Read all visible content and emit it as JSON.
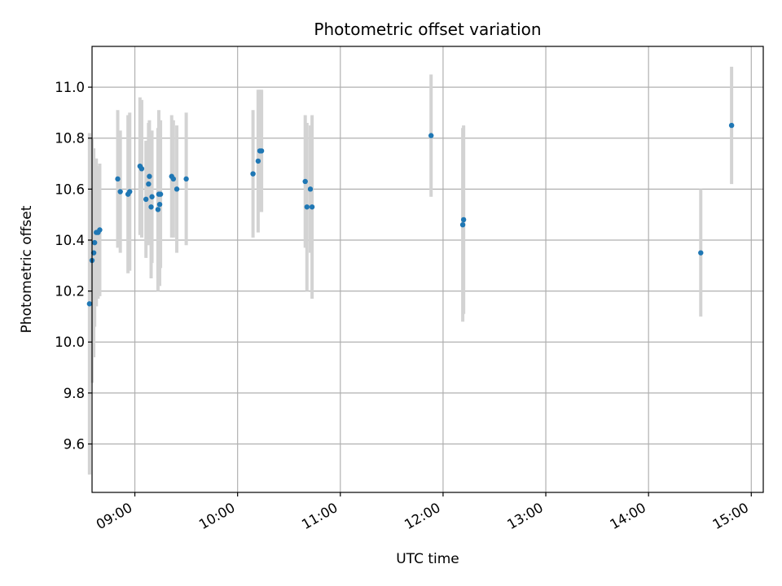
{
  "chart_data": {
    "type": "scatter",
    "title": "Photometric offset variation",
    "xlabel": "UTC time",
    "ylabel": "Photometric offset",
    "xlim": [
      "08:35",
      "15:07"
    ],
    "ylim": [
      9.41,
      11.16
    ],
    "x_ticks": [
      "09:00",
      "10:00",
      "11:00",
      "12:00",
      "13:00",
      "14:00",
      "15:00"
    ],
    "y_ticks": [
      9.6,
      9.8,
      10.0,
      10.2,
      10.4,
      10.6,
      10.8,
      11.0
    ],
    "y_tick_labels": [
      "9.6",
      "9.8",
      "10.0",
      "10.2",
      "10.4",
      "10.6",
      "10.8",
      "11.0"
    ],
    "grid": true,
    "colors": {
      "point": "#1f77b4",
      "errorbar": "#d3d3d3",
      "grid": "#b0b0b0"
    },
    "points": [
      {
        "x": "08:33:30",
        "y": 10.15,
        "yerr": 0.67
      },
      {
        "x": "08:35:00",
        "y": 10.32,
        "yerr": 0.48
      },
      {
        "x": "08:36:00",
        "y": 10.35,
        "yerr": 0.41
      },
      {
        "x": "08:36:30",
        "y": 10.39,
        "yerr": 0.33
      },
      {
        "x": "08:37:30",
        "y": 10.43,
        "yerr": 0.29
      },
      {
        "x": "08:38:30",
        "y": 10.43,
        "yerr": 0.26
      },
      {
        "x": "08:39:30",
        "y": 10.44,
        "yerr": 0.26
      },
      {
        "x": "08:50:00",
        "y": 10.64,
        "yerr": 0.27
      },
      {
        "x": "08:51:30",
        "y": 10.59,
        "yerr": 0.24
      },
      {
        "x": "08:56:00",
        "y": 10.58,
        "yerr": 0.31
      },
      {
        "x": "08:57:00",
        "y": 10.59,
        "yerr": 0.31
      },
      {
        "x": "09:03:00",
        "y": 10.69,
        "yerr": 0.27
      },
      {
        "x": "09:04:00",
        "y": 10.68,
        "yerr": 0.27
      },
      {
        "x": "09:06:30",
        "y": 10.56,
        "yerr": 0.23
      },
      {
        "x": "09:08:00",
        "y": 10.62,
        "yerr": 0.24
      },
      {
        "x": "09:08:30",
        "y": 10.65,
        "yerr": 0.22
      },
      {
        "x": "09:09:30",
        "y": 10.53,
        "yerr": 0.28
      },
      {
        "x": "09:10:00",
        "y": 10.57,
        "yerr": 0.26
      },
      {
        "x": "09:13:30",
        "y": 10.52,
        "yerr": 0.32
      },
      {
        "x": "09:14:00",
        "y": 10.58,
        "yerr": 0.33
      },
      {
        "x": "09:14:30",
        "y": 10.54,
        "yerr": 0.32
      },
      {
        "x": "09:15:00",
        "y": 10.58,
        "yerr": 0.29
      },
      {
        "x": "09:21:30",
        "y": 10.65,
        "yerr": 0.24
      },
      {
        "x": "09:22:30",
        "y": 10.64,
        "yerr": 0.23
      },
      {
        "x": "09:24:30",
        "y": 10.6,
        "yerr": 0.25
      },
      {
        "x": "09:30:00",
        "y": 10.64,
        "yerr": 0.26
      },
      {
        "x": "10:09:00",
        "y": 10.66,
        "yerr": 0.25
      },
      {
        "x": "10:12:00",
        "y": 10.71,
        "yerr": 0.28
      },
      {
        "x": "10:13:00",
        "y": 10.75,
        "yerr": 0.24
      },
      {
        "x": "10:14:00",
        "y": 10.75,
        "yerr": 0.24
      },
      {
        "x": "10:39:30",
        "y": 10.63,
        "yerr": 0.26
      },
      {
        "x": "10:40:30",
        "y": 10.53,
        "yerr": 0.33
      },
      {
        "x": "10:42:30",
        "y": 10.6,
        "yerr": 0.25
      },
      {
        "x": "10:43:30",
        "y": 10.53,
        "yerr": 0.36
      },
      {
        "x": "11:53:00",
        "y": 10.81,
        "yerr": 0.24
      },
      {
        "x": "12:11:30",
        "y": 10.46,
        "yerr": 0.38
      },
      {
        "x": "12:12:00",
        "y": 10.48,
        "yerr": 0.37
      },
      {
        "x": "14:30:30",
        "y": 10.35,
        "yerr": 0.25
      },
      {
        "x": "14:48:30",
        "y": 10.85,
        "yerr": 0.23
      }
    ]
  }
}
